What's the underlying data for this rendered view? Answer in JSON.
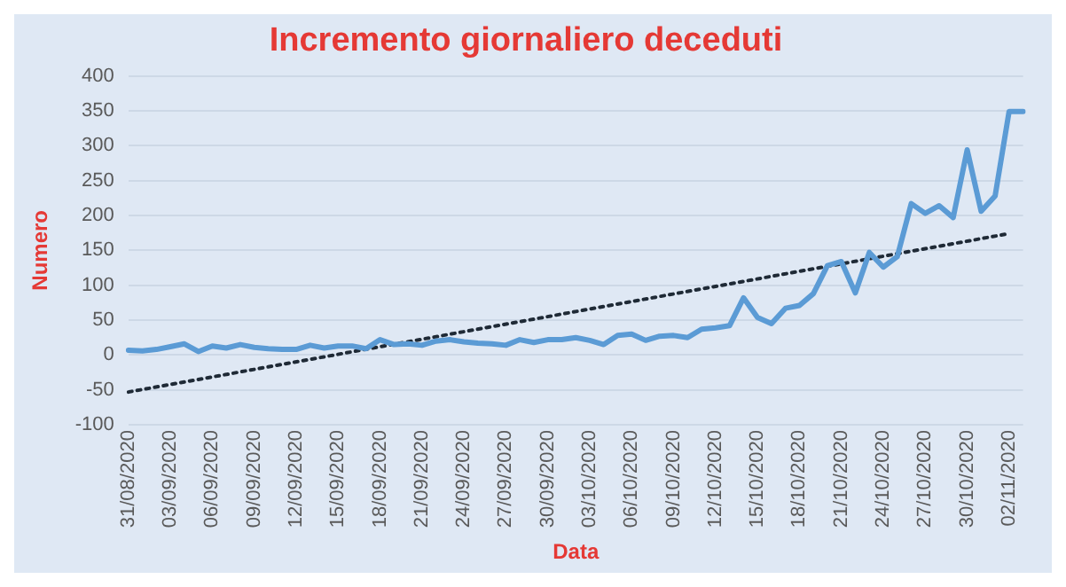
{
  "chart_data": {
    "type": "line",
    "title": "Incremento giornaliero deceduti",
    "xlabel": "Data",
    "ylabel": "Numero",
    "categories": [
      "31/08/2020",
      null,
      null,
      "03/09/2020",
      null,
      null,
      "06/09/2020",
      null,
      null,
      "09/09/2020",
      null,
      null,
      "12/09/2020",
      null,
      null,
      "15/09/2020",
      null,
      null,
      "18/09/2020",
      null,
      null,
      "21/09/2020",
      null,
      null,
      "24/09/2020",
      null,
      null,
      "27/09/2020",
      null,
      null,
      "30/09/2020",
      null,
      null,
      "03/10/2020",
      null,
      null,
      "06/10/2020",
      null,
      null,
      "09/10/2020",
      null,
      null,
      "12/10/2020",
      null,
      null,
      "15/10/2020",
      null,
      null,
      "18/10/2020",
      null,
      null,
      "21/10/2020",
      null,
      null,
      "24/10/2020",
      null,
      null,
      "27/10/2020",
      null,
      null,
      "30/10/2020",
      null,
      null,
      "02/11/2020",
      null
    ],
    "series": [
      {
        "color": "#5b9bd5",
        "values": [
          7,
          6,
          8,
          12,
          16,
          5,
          13,
          10,
          15,
          11,
          9,
          8,
          8,
          14,
          10,
          13,
          13,
          9,
          22,
          15,
          16,
          14,
          20,
          22,
          19,
          17,
          16,
          14,
          22,
          18,
          22,
          22,
          25,
          21,
          15,
          28,
          30,
          21,
          27,
          28,
          25,
          37,
          39,
          42,
          82,
          54,
          45,
          67,
          71,
          88,
          128,
          134,
          89,
          147,
          126,
          141,
          217,
          203,
          214,
          197,
          294,
          206,
          228,
          349,
          349
        ]
      },
      {
        "type": "line",
        "color": "#1f2a36",
        "line_style": "dotted",
        "x": [
          "31/08/2020",
          "02/11/2020"
        ],
        "values": [
          -53,
          174
        ]
      }
    ],
    "ylim": [
      -100,
      400
    ],
    "yticks": [
      -100,
      -50,
      0,
      50,
      100,
      150,
      200,
      250,
      300,
      350,
      400
    ],
    "grid": "y",
    "legend": false,
    "marker": "none"
  }
}
